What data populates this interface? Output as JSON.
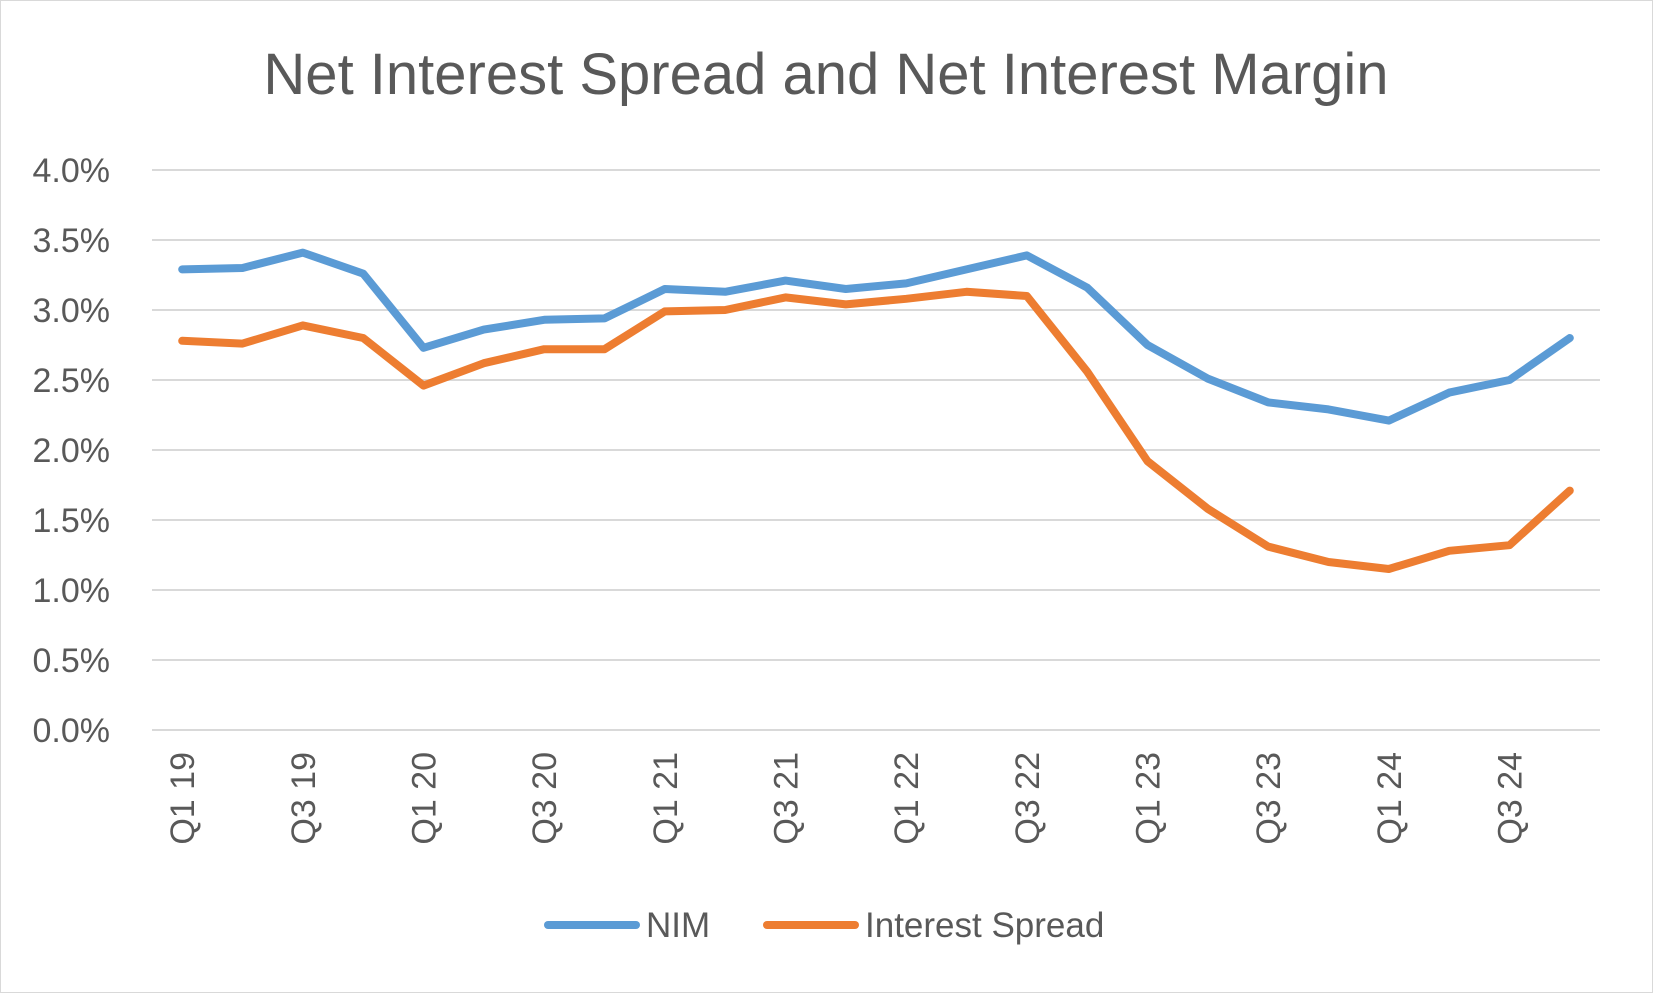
{
  "chart_data": {
    "type": "line",
    "title": "Net Interest Spread and Net Interest Margin",
    "xlabel": "",
    "ylabel": "",
    "ylim": [
      0,
      0.04
    ],
    "y_ticks": [
      0.0,
      0.005,
      0.01,
      0.015,
      0.02,
      0.025,
      0.03,
      0.035,
      0.04
    ],
    "y_tick_labels": [
      "0.0%",
      "0.5%",
      "1.0%",
      "1.5%",
      "2.0%",
      "2.5%",
      "3.0%",
      "3.5%",
      "4.0%"
    ],
    "categories": [
      "Q1 19",
      "Q2 19",
      "Q3 19",
      "Q4 19",
      "Q1 20",
      "Q2 20",
      "Q3 20",
      "Q4 20",
      "Q1 21",
      "Q2 21",
      "Q3 21",
      "Q4 21",
      "Q1 22",
      "Q2 22",
      "Q3 22",
      "Q4 22",
      "Q1 23",
      "Q2 23",
      "Q3 23",
      "Q4 23",
      "Q1 24",
      "Q2 24",
      "Q3 24",
      "Q4 24"
    ],
    "x_tick_labels": [
      "Q1 19",
      "",
      "Q3 19",
      "",
      "Q1 20",
      "",
      "Q3 20",
      "",
      "Q1 21",
      "",
      "Q3 21",
      "",
      "Q1 22",
      "",
      "Q3 22",
      "",
      "Q1 23",
      "",
      "Q3 23",
      "",
      "Q1 24",
      "",
      "Q3 24",
      ""
    ],
    "series": [
      {
        "name": "NIM",
        "color": "#5b9bd5",
        "values": [
          0.0329,
          0.033,
          0.0341,
          0.0326,
          0.0273,
          0.0286,
          0.0293,
          0.0294,
          0.0315,
          0.0313,
          0.0321,
          0.0315,
          0.0319,
          0.0329,
          0.0339,
          0.0316,
          0.0275,
          0.0251,
          0.0234,
          0.0229,
          0.0221,
          0.0241,
          0.025,
          0.028
        ]
      },
      {
        "name": "Interest Spread",
        "color": "#ed7d31",
        "values": [
          0.0278,
          0.0276,
          0.0289,
          0.028,
          0.0246,
          0.0262,
          0.0272,
          0.0272,
          0.0299,
          0.03,
          0.0309,
          0.0304,
          0.0308,
          0.0313,
          0.031,
          0.0256,
          0.0192,
          0.0158,
          0.0131,
          0.012,
          0.0115,
          0.0128,
          0.0132,
          0.0171
        ]
      }
    ],
    "grid": true,
    "legend": "bottom"
  }
}
